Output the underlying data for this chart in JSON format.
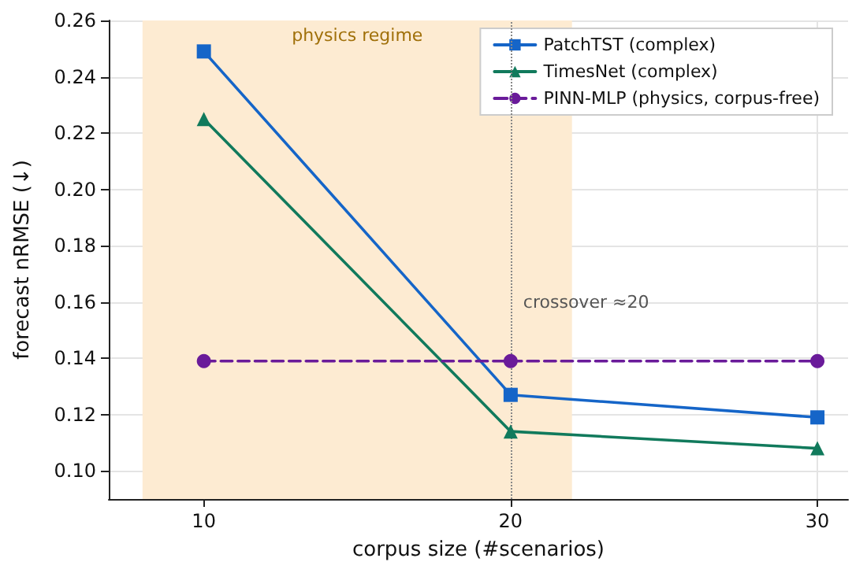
{
  "chart_data": {
    "type": "line",
    "xlabel": "corpus size (#scenarios)",
    "ylabel": "forecast nRMSE (↓)",
    "x": [
      10,
      20,
      30
    ],
    "series": [
      {
        "name": "PatchTST (complex)",
        "color": "#1565c8",
        "values": [
          0.249,
          0.127,
          0.119
        ],
        "marker": "square"
      },
      {
        "name": "TimesNet (complex)",
        "color": "#117a5c",
        "values": [
          0.225,
          0.114,
          0.108
        ],
        "marker": "triangle"
      },
      {
        "name": "PINN-MLP (physics, corpus-free)",
        "color": "#6a1b9a",
        "values": [
          0.139,
          0.139,
          0.139
        ],
        "marker": "circle",
        "line_style": "dashed"
      }
    ],
    "xlim": [
      6.9,
      31
    ],
    "xticks": [
      10,
      20,
      30
    ],
    "ylim": [
      0.09,
      0.26
    ],
    "yticks": [
      {
        "value": 0.1,
        "label": "0.10"
      },
      {
        "value": 0.12,
        "label": "0.12"
      },
      {
        "value": 0.14,
        "label": "0.14"
      },
      {
        "value": 0.16,
        "label": "0.16"
      },
      {
        "value": 0.18,
        "label": "0.18"
      },
      {
        "value": 0.2,
        "label": "0.20"
      },
      {
        "value": 0.22,
        "label": "0.22"
      },
      {
        "value": 0.24,
        "label": "0.24"
      },
      {
        "value": 0.26,
        "label": "0.26"
      }
    ],
    "ref_lines": [
      {
        "axis": "x",
        "value": 20,
        "label": "crossover ≈20",
        "color": "#888888",
        "line_style": "dotted"
      }
    ],
    "bands": [
      {
        "axis": "x",
        "from": 8,
        "to": 22,
        "label": "physics regime",
        "color": "#fdebd2"
      }
    ],
    "grid": true,
    "legend": "top right"
  }
}
